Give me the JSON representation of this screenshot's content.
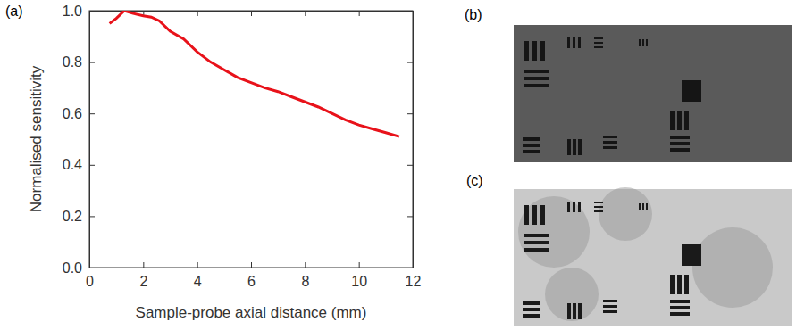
{
  "chart_data": {
    "type": "line",
    "panel_label": "(a)",
    "x_label": "Sample-probe axial distance (mm)",
    "y_label": "Normalised sensitivity",
    "x": [
      0.75,
      1.0,
      1.3,
      1.6,
      2.0,
      2.3,
      2.6,
      3.0,
      3.5,
      4.0,
      4.5,
      5.0,
      5.5,
      6.0,
      6.5,
      7.0,
      7.5,
      8.0,
      8.5,
      9.0,
      9.5,
      10.0,
      10.5,
      11.0,
      11.5
    ],
    "values": [
      0.95,
      0.97,
      1.0,
      0.99,
      0.98,
      0.975,
      0.96,
      0.92,
      0.89,
      0.84,
      0.8,
      0.77,
      0.74,
      0.72,
      0.7,
      0.685,
      0.665,
      0.645,
      0.625,
      0.6,
      0.575,
      0.555,
      0.54,
      0.525,
      0.51
    ],
    "color": "#e8121a",
    "line_style": "solid",
    "xlim": [
      0,
      12
    ],
    "xticks": [
      0,
      2,
      4,
      6,
      8,
      10,
      12
    ],
    "ylim": [
      0,
      1
    ],
    "yticks": [
      {
        "value": 0,
        "label": "0.0"
      },
      0.2,
      0.4,
      0.6,
      0.8,
      {
        "value": 1,
        "label": "1.0"
      }
    ],
    "grid": false
  },
  "images": [
    {
      "panel_label": "(b)"
    },
    {
      "panel_label": "(c)"
    }
  ]
}
